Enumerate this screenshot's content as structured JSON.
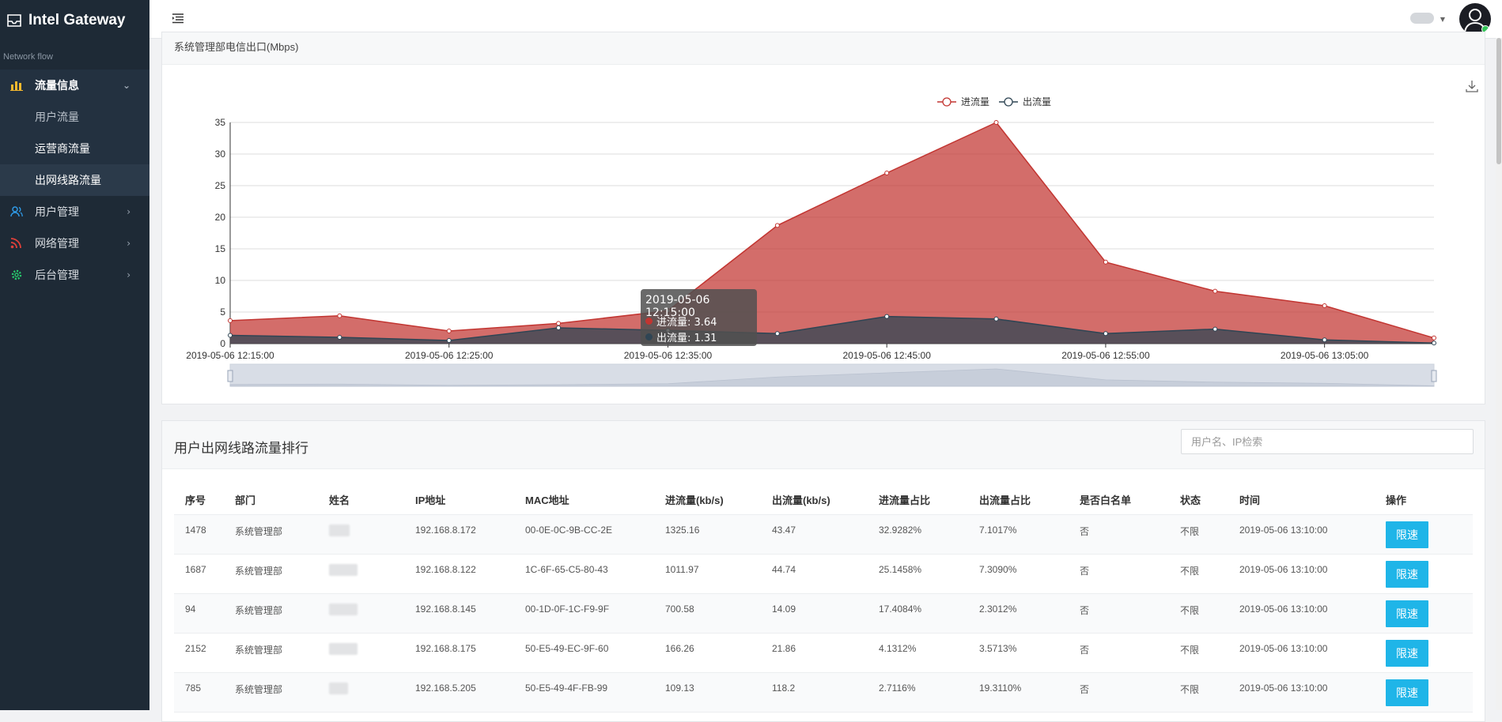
{
  "brand": {
    "title": "Intel Gateway"
  },
  "sidebar": {
    "section": "Network flow",
    "groups": [
      {
        "label": "流量信息",
        "icon": "bar-chart-icon",
        "color": "#f5b82e"
      },
      {
        "label": "用户管理",
        "icon": "users-icon",
        "color": "#2f9be8"
      },
      {
        "label": "网络管理",
        "icon": "rss-icon",
        "color": "#e0403a"
      },
      {
        "label": "后台管理",
        "icon": "gear-icon",
        "color": "#27c46b"
      }
    ],
    "subitems": [
      {
        "label": "用户流量"
      },
      {
        "label": "运营商流量"
      },
      {
        "label": "出网线路流量"
      }
    ]
  },
  "chart_card": {
    "title": "系统管理部电信出口(Mbps)"
  },
  "chart_data": {
    "type": "area",
    "title": "",
    "ylim": [
      0,
      35
    ],
    "yticks": [
      0,
      5,
      10,
      15,
      20,
      25,
      30,
      35
    ],
    "x": [
      "2019-05-06 12:15:00",
      "2019-05-06 12:20:00",
      "2019-05-06 12:25:00",
      "2019-05-06 12:30:00",
      "2019-05-06 12:35:00",
      "2019-05-06 12:40:00",
      "2019-05-06 12:45:00",
      "2019-05-06 12:50:00",
      "2019-05-06 12:55:00",
      "2019-05-06 13:00:00",
      "2019-05-06 13:05:00",
      "2019-05-06 13:10:00"
    ],
    "xtick_labels": [
      "2019-05-06 12:15:00",
      "2019-05-06 12:25:00",
      "2019-05-06 12:35:00",
      "2019-05-06 12:45:00",
      "2019-05-06 12:55:00",
      "2019-05-06 13:05:00"
    ],
    "series": [
      {
        "name": "进流量",
        "color": "#c23531",
        "values": [
          3.64,
          4.4,
          2.0,
          3.2,
          5.2,
          18.7,
          27.0,
          35.0,
          12.9,
          8.3,
          6.0,
          0.9
        ]
      },
      {
        "name": "出流量",
        "color": "#2f4554",
        "values": [
          1.31,
          1.0,
          0.5,
          2.5,
          2.1,
          1.6,
          4.3,
          3.9,
          1.6,
          2.3,
          0.6,
          0.1
        ]
      }
    ],
    "legend": "top-center",
    "grid": true,
    "tooltip": {
      "title": "2019-05-06 12:15:00",
      "rows": [
        {
          "label": "进流量: 3.64"
        },
        {
          "label": "出流量: 1.31"
        }
      ]
    }
  },
  "table_card": {
    "title": "用户出网线路流量排行",
    "search_placeholder": "用户名、IP检索",
    "columns": [
      "序号",
      "部门",
      "姓名",
      "IP地址",
      "MAC地址",
      "进流量(kb/s)",
      "出流量(kb/s)",
      "进流量占比",
      "出流量占比",
      "是否白名单",
      "状态",
      "时间",
      "操作"
    ],
    "rows": [
      {
        "id": "1478",
        "dept": "系统管理部",
        "ip": "192.168.8.172",
        "mac": "00-0E-0C-9B-CC-2E",
        "in": "1325.16",
        "out": "43.47",
        "in_pct": "32.9282%",
        "out_pct": "7.1017%",
        "white": "否",
        "status": "不限",
        "time": "2019-05-06 13:10:00",
        "action": "限速"
      },
      {
        "id": "1687",
        "dept": "系统管理部",
        "ip": "192.168.8.122",
        "mac": "1C-6F-65-C5-80-43",
        "in": "1011.97",
        "out": "44.74",
        "in_pct": "25.1458%",
        "out_pct": "7.3090%",
        "white": "否",
        "status": "不限",
        "time": "2019-05-06 13:10:00",
        "action": "限速"
      },
      {
        "id": "94",
        "dept": "系统管理部",
        "ip": "192.168.8.145",
        "mac": "00-1D-0F-1C-F9-9F",
        "in": "700.58",
        "out": "14.09",
        "in_pct": "17.4084%",
        "out_pct": "2.3012%",
        "white": "否",
        "status": "不限",
        "time": "2019-05-06 13:10:00",
        "action": "限速"
      },
      {
        "id": "2152",
        "dept": "系统管理部",
        "ip": "192.168.8.175",
        "mac": "50-E5-49-EC-9F-60",
        "in": "166.26",
        "out": "21.86",
        "in_pct": "4.1312%",
        "out_pct": "3.5713%",
        "white": "否",
        "status": "不限",
        "time": "2019-05-06 13:10:00",
        "action": "限速"
      },
      {
        "id": "785",
        "dept": "系统管理部",
        "ip": "192.168.5.205",
        "mac": "50-E5-49-4F-FB-99",
        "in": "109.13",
        "out": "118.2",
        "in_pct": "2.7116%",
        "out_pct": "19.3110%",
        "white": "否",
        "status": "不限",
        "time": "2019-05-06 13:10:00",
        "action": "限速"
      }
    ]
  }
}
